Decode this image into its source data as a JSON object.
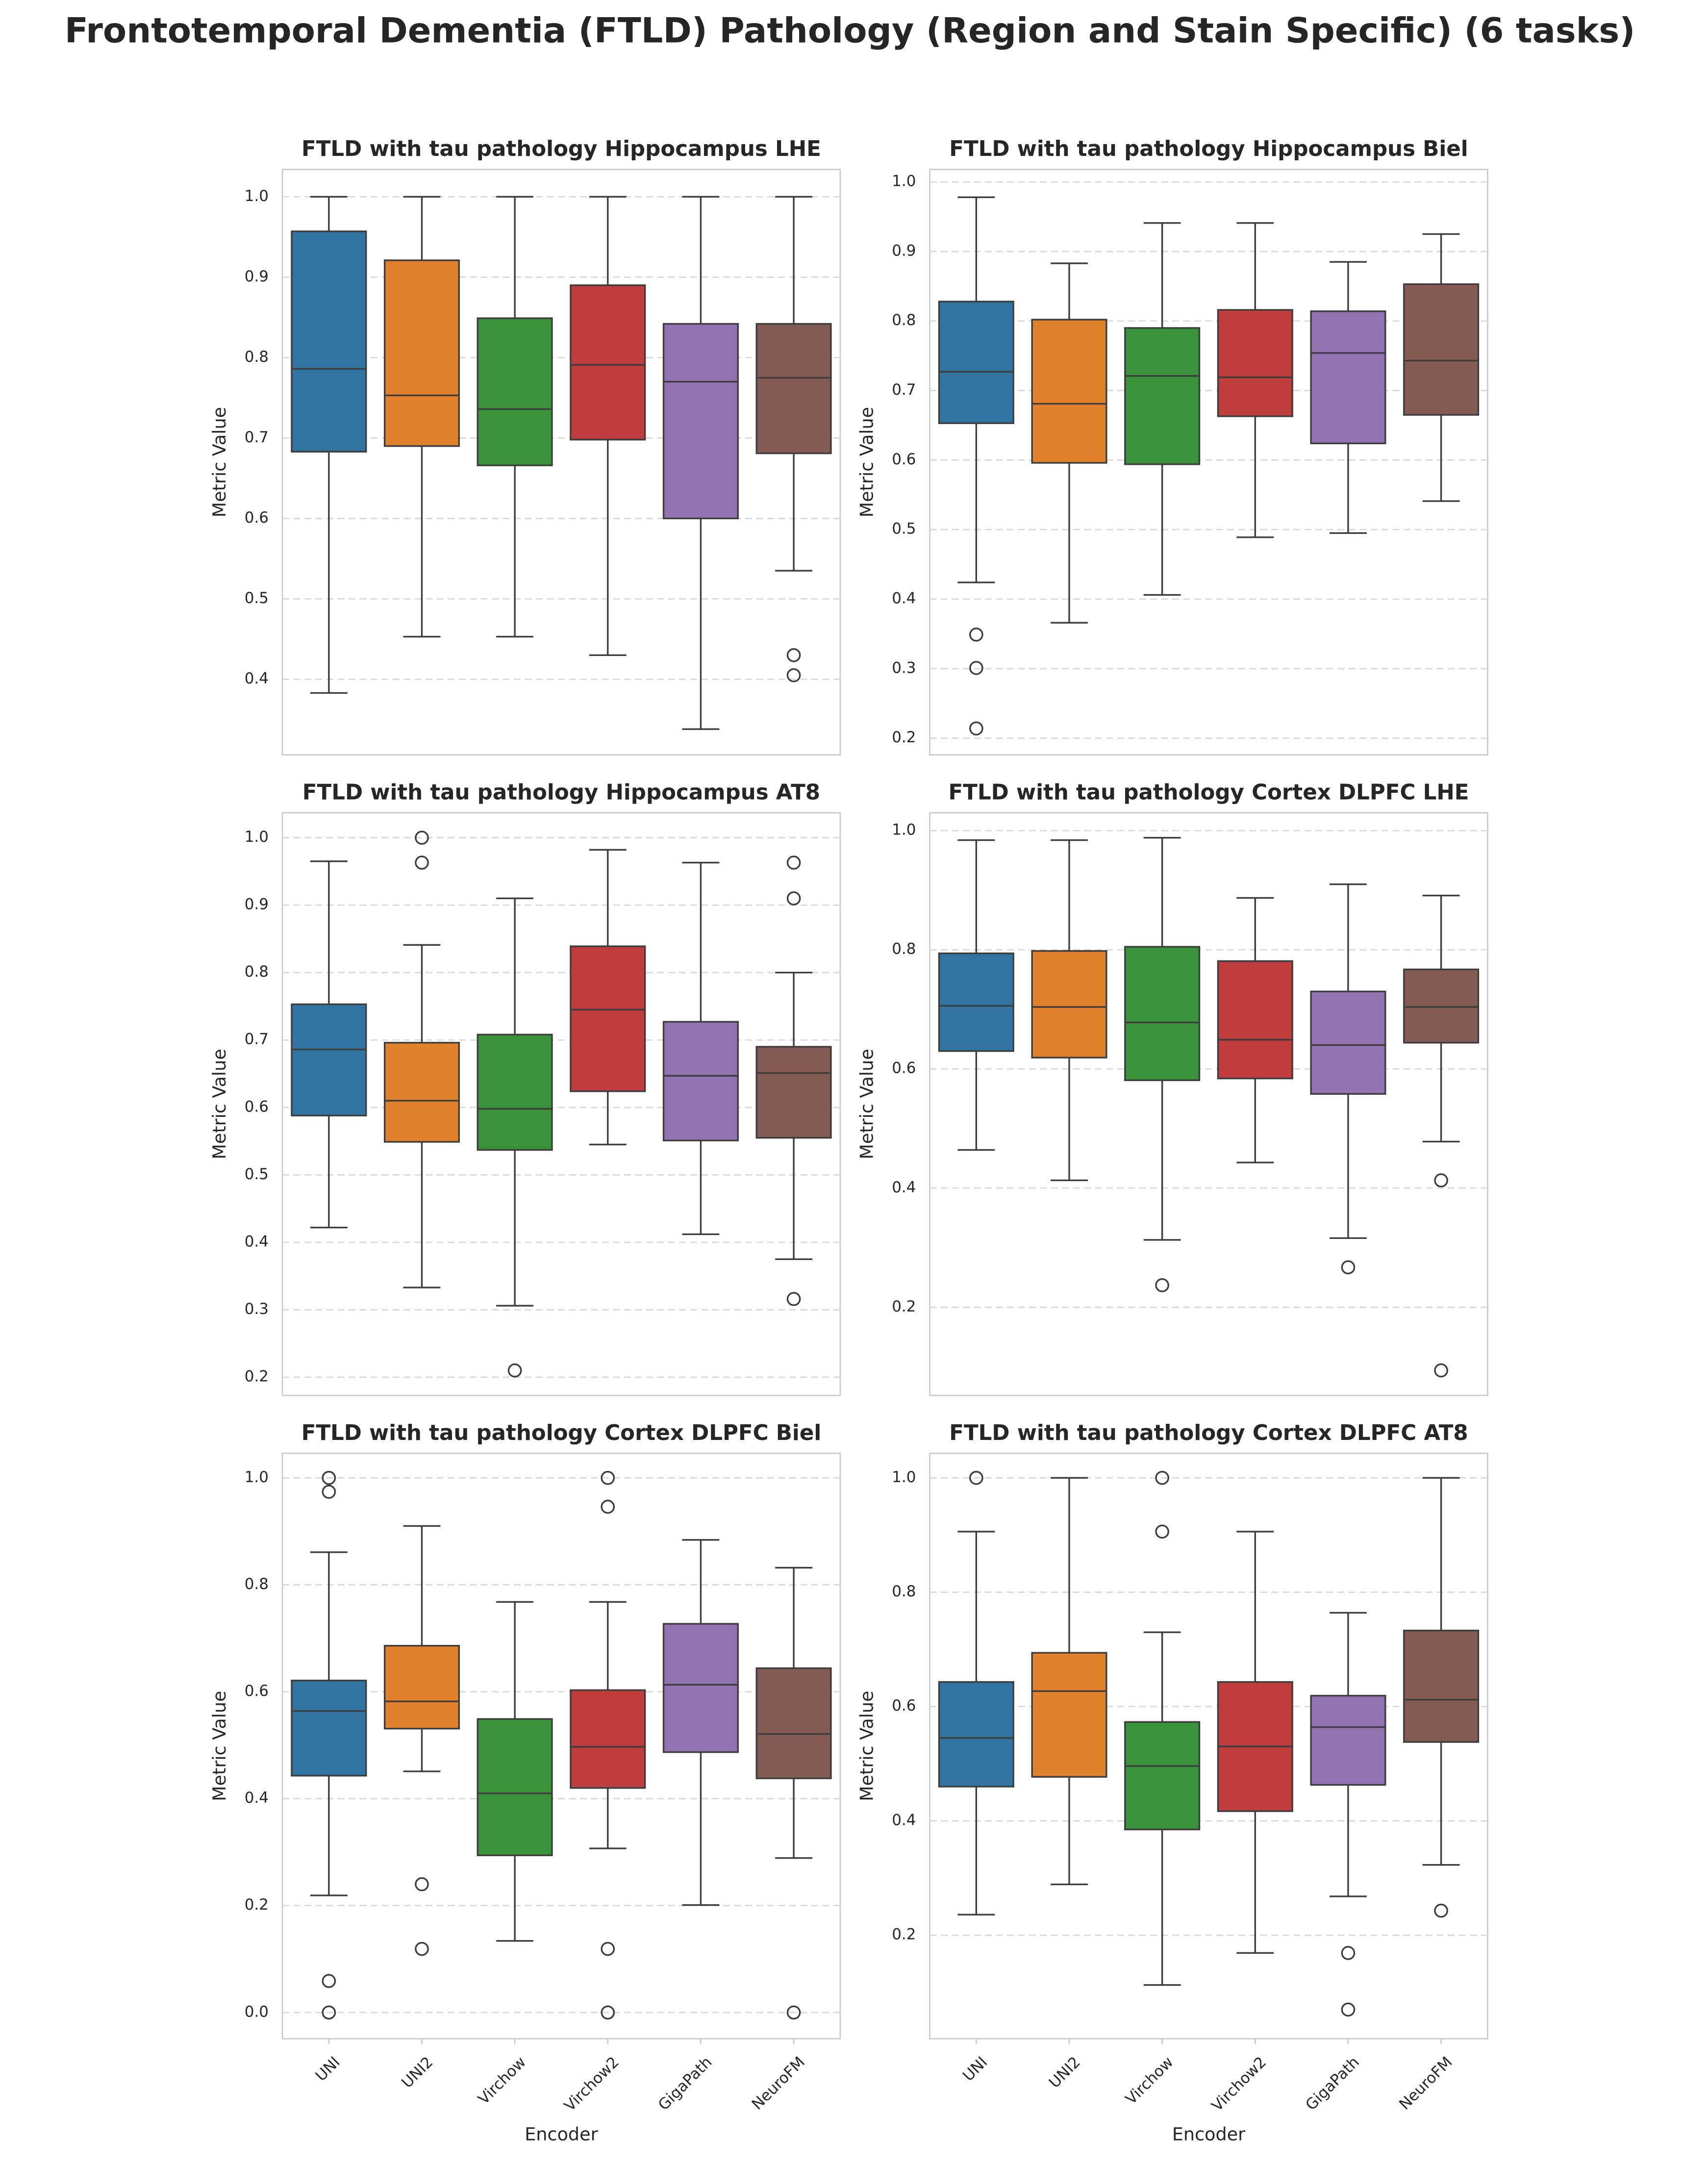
{
  "title": "Frontotemporal Dementia (FTLD) Pathology (Region and Stain Specific) (6 tasks)",
  "xlabel": "Encoder",
  "ylabel": "Metric Value",
  "categories": [
    "UNI",
    "UNI2",
    "Virchow",
    "Virchow2",
    "GigaPath",
    "NeuroFM"
  ],
  "colors": [
    "#3274a1",
    "#e1812c",
    "#3a923a",
    "#c03d3e",
    "#9372b2",
    "#845b53"
  ],
  "chart_data": [
    {
      "type": "box",
      "title": "FTLD with tau pathology Hippocampus LHE",
      "grid": true,
      "ylim": [
        0.306,
        1.034
      ],
      "yticks": [
        {
          "value": 0.4,
          "label": "0.4"
        },
        {
          "value": 0.5,
          "label": "0.5"
        },
        {
          "value": 0.6,
          "label": "0.6"
        },
        {
          "value": 0.7,
          "label": "0.7"
        },
        {
          "value": 0.8,
          "label": "0.8"
        },
        {
          "value": 0.9,
          "label": "0.9"
        },
        {
          "value": 1.0,
          "label": "1.0"
        }
      ],
      "boxes": [
        {
          "whislo": 0.383,
          "q1": 0.683,
          "med": 0.786,
          "q3": 0.957,
          "whishi": 1.0,
          "fliers": []
        },
        {
          "whislo": 0.453,
          "q1": 0.69,
          "med": 0.753,
          "q3": 0.921,
          "whishi": 1.0,
          "fliers": []
        },
        {
          "whislo": 0.453,
          "q1": 0.666,
          "med": 0.736,
          "q3": 0.849,
          "whishi": 1.0,
          "fliers": []
        },
        {
          "whislo": 0.43,
          "q1": 0.698,
          "med": 0.791,
          "q3": 0.89,
          "whishi": 1.0,
          "fliers": []
        },
        {
          "whislo": 0.338,
          "q1": 0.6,
          "med": 0.77,
          "q3": 0.842,
          "whishi": 1.0,
          "fliers": []
        },
        {
          "whislo": 0.535,
          "q1": 0.681,
          "med": 0.775,
          "q3": 0.842,
          "whishi": 1.0,
          "fliers": [
            0.43,
            0.405
          ]
        }
      ]
    },
    {
      "type": "box",
      "title": "FTLD with tau pathology Hippocampus Biel",
      "grid": true,
      "ylim": [
        0.176,
        1.018
      ],
      "yticks": [
        {
          "value": 0.2,
          "label": "0.2"
        },
        {
          "value": 0.3,
          "label": "0.3"
        },
        {
          "value": 0.4,
          "label": "0.4"
        },
        {
          "value": 0.5,
          "label": "0.5"
        },
        {
          "value": 0.6,
          "label": "0.6"
        },
        {
          "value": 0.7,
          "label": "0.7"
        },
        {
          "value": 0.8,
          "label": "0.8"
        },
        {
          "value": 0.9,
          "label": "0.9"
        },
        {
          "value": 1.0,
          "label": "1.0"
        }
      ],
      "boxes": [
        {
          "whislo": 0.424,
          "q1": 0.653,
          "med": 0.727,
          "q3": 0.828,
          "whishi": 0.978,
          "fliers": [
            0.349,
            0.301,
            0.214
          ]
        },
        {
          "whislo": 0.366,
          "q1": 0.596,
          "med": 0.681,
          "q3": 0.802,
          "whishi": 0.883,
          "fliers": []
        },
        {
          "whislo": 0.406,
          "q1": 0.594,
          "med": 0.721,
          "q3": 0.79,
          "whishi": 0.941,
          "fliers": []
        },
        {
          "whislo": 0.489,
          "q1": 0.663,
          "med": 0.719,
          "q3": 0.816,
          "whishi": 0.941,
          "fliers": []
        },
        {
          "whislo": 0.495,
          "q1": 0.624,
          "med": 0.754,
          "q3": 0.814,
          "whishi": 0.885,
          "fliers": []
        },
        {
          "whislo": 0.541,
          "q1": 0.665,
          "med": 0.743,
          "q3": 0.853,
          "whishi": 0.925,
          "fliers": []
        }
      ]
    },
    {
      "type": "box",
      "title": "FTLD with tau pathology Hippocampus AT8",
      "grid": true,
      "ylim": [
        0.173,
        1.037
      ],
      "yticks": [
        {
          "value": 0.2,
          "label": "0.2"
        },
        {
          "value": 0.3,
          "label": "0.3"
        },
        {
          "value": 0.4,
          "label": "0.4"
        },
        {
          "value": 0.5,
          "label": "0.5"
        },
        {
          "value": 0.6,
          "label": "0.6"
        },
        {
          "value": 0.7,
          "label": "0.7"
        },
        {
          "value": 0.8,
          "label": "0.8"
        },
        {
          "value": 0.9,
          "label": "0.9"
        },
        {
          "value": 1.0,
          "label": "1.0"
        }
      ],
      "boxes": [
        {
          "whislo": 0.422,
          "q1": 0.588,
          "med": 0.686,
          "q3": 0.753,
          "whishi": 0.965,
          "fliers": []
        },
        {
          "whislo": 0.333,
          "q1": 0.549,
          "med": 0.61,
          "q3": 0.696,
          "whishi": 0.841,
          "fliers": [
            1.0,
            0.963
          ]
        },
        {
          "whislo": 0.306,
          "q1": 0.537,
          "med": 0.598,
          "q3": 0.708,
          "whishi": 0.91,
          "fliers": [
            0.21
          ]
        },
        {
          "whislo": 0.545,
          "q1": 0.624,
          "med": 0.745,
          "q3": 0.839,
          "whishi": 0.982,
          "fliers": []
        },
        {
          "whislo": 0.412,
          "q1": 0.551,
          "med": 0.647,
          "q3": 0.727,
          "whishi": 0.963,
          "fliers": []
        },
        {
          "whislo": 0.375,
          "q1": 0.555,
          "med": 0.651,
          "q3": 0.69,
          "whishi": 0.8,
          "fliers": [
            0.963,
            0.91,
            0.316
          ]
        }
      ]
    },
    {
      "type": "box",
      "title": "FTLD with tau pathology Cortex DLPFC LHE",
      "grid": true,
      "ylim": [
        0.052,
        1.03
      ],
      "yticks": [
        {
          "value": 0.2,
          "label": "0.2"
        },
        {
          "value": 0.4,
          "label": "0.4"
        },
        {
          "value": 0.6,
          "label": "0.6"
        },
        {
          "value": 0.8,
          "label": "0.8"
        },
        {
          "value": 1.0,
          "label": "1.0"
        }
      ],
      "boxes": [
        {
          "whislo": 0.464,
          "q1": 0.63,
          "med": 0.706,
          "q3": 0.794,
          "whishi": 0.984,
          "fliers": []
        },
        {
          "whislo": 0.413,
          "q1": 0.619,
          "med": 0.704,
          "q3": 0.798,
          "whishi": 0.984,
          "fliers": []
        },
        {
          "whislo": 0.313,
          "q1": 0.581,
          "med": 0.678,
          "q3": 0.805,
          "whishi": 0.988,
          "fliers": [
            0.237
          ]
        },
        {
          "whislo": 0.443,
          "q1": 0.584,
          "med": 0.649,
          "q3": 0.781,
          "whishi": 0.887,
          "fliers": []
        },
        {
          "whislo": 0.316,
          "q1": 0.558,
          "med": 0.64,
          "q3": 0.73,
          "whishi": 0.91,
          "fliers": [
            0.267
          ]
        },
        {
          "whislo": 0.478,
          "q1": 0.644,
          "med": 0.704,
          "q3": 0.767,
          "whishi": 0.891,
          "fliers": [
            0.413,
            0.094
          ]
        }
      ]
    },
    {
      "type": "box",
      "title": "FTLD with tau pathology Cortex DLPFC Biel",
      "grid": true,
      "ylim": [
        -0.049,
        1.046
      ],
      "yticks": [
        {
          "value": 0.0,
          "label": "0.0"
        },
        {
          "value": 0.2,
          "label": "0.2"
        },
        {
          "value": 0.4,
          "label": "0.4"
        },
        {
          "value": 0.6,
          "label": "0.6"
        },
        {
          "value": 0.8,
          "label": "0.8"
        },
        {
          "value": 1.0,
          "label": "1.0"
        }
      ],
      "boxes": [
        {
          "whislo": 0.219,
          "q1": 0.443,
          "med": 0.564,
          "q3": 0.621,
          "whishi": 0.861,
          "fliers": [
            1.0,
            0.974,
            0.059,
            0.0
          ]
        },
        {
          "whislo": 0.451,
          "q1": 0.531,
          "med": 0.582,
          "q3": 0.686,
          "whishi": 0.91,
          "fliers": [
            0.24,
            0.119
          ]
        },
        {
          "whislo": 0.134,
          "q1": 0.294,
          "med": 0.41,
          "q3": 0.549,
          "whishi": 0.768,
          "fliers": []
        },
        {
          "whislo": 0.307,
          "q1": 0.42,
          "med": 0.497,
          "q3": 0.603,
          "whishi": 0.768,
          "fliers": [
            1.0,
            0.946,
            0.119,
            0.0
          ]
        },
        {
          "whislo": 0.201,
          "q1": 0.487,
          "med": 0.613,
          "q3": 0.727,
          "whishi": 0.884,
          "fliers": []
        },
        {
          "whislo": 0.289,
          "q1": 0.438,
          "med": 0.521,
          "q3": 0.644,
          "whishi": 0.832,
          "fliers": [
            0.0
          ]
        }
      ]
    },
    {
      "type": "box",
      "title": "FTLD with tau pathology Cortex DLPFC AT8",
      "grid": true,
      "ylim": [
        0.019,
        1.043
      ],
      "yticks": [
        {
          "value": 0.2,
          "label": "0.2"
        },
        {
          "value": 0.4,
          "label": "0.4"
        },
        {
          "value": 0.6,
          "label": "0.6"
        },
        {
          "value": 0.8,
          "label": "0.8"
        },
        {
          "value": 1.0,
          "label": "1.0"
        }
      ],
      "boxes": [
        {
          "whislo": 0.236,
          "q1": 0.46,
          "med": 0.545,
          "q3": 0.643,
          "whishi": 0.906,
          "fliers": [
            1.0
          ]
        },
        {
          "whislo": 0.289,
          "q1": 0.477,
          "med": 0.627,
          "q3": 0.694,
          "whishi": 1.0,
          "fliers": []
        },
        {
          "whislo": 0.113,
          "q1": 0.385,
          "med": 0.496,
          "q3": 0.573,
          "whishi": 0.73,
          "fliers": [
            1.0,
            0.906
          ]
        },
        {
          "whislo": 0.169,
          "q1": 0.417,
          "med": 0.53,
          "q3": 0.643,
          "whishi": 0.906,
          "fliers": []
        },
        {
          "whislo": 0.268,
          "q1": 0.463,
          "med": 0.564,
          "q3": 0.619,
          "whishi": 0.764,
          "fliers": [
            0.169,
            0.07
          ]
        },
        {
          "whislo": 0.323,
          "q1": 0.538,
          "med": 0.612,
          "q3": 0.733,
          "whishi": 1.0,
          "fliers": [
            0.243
          ]
        }
      ]
    }
  ]
}
